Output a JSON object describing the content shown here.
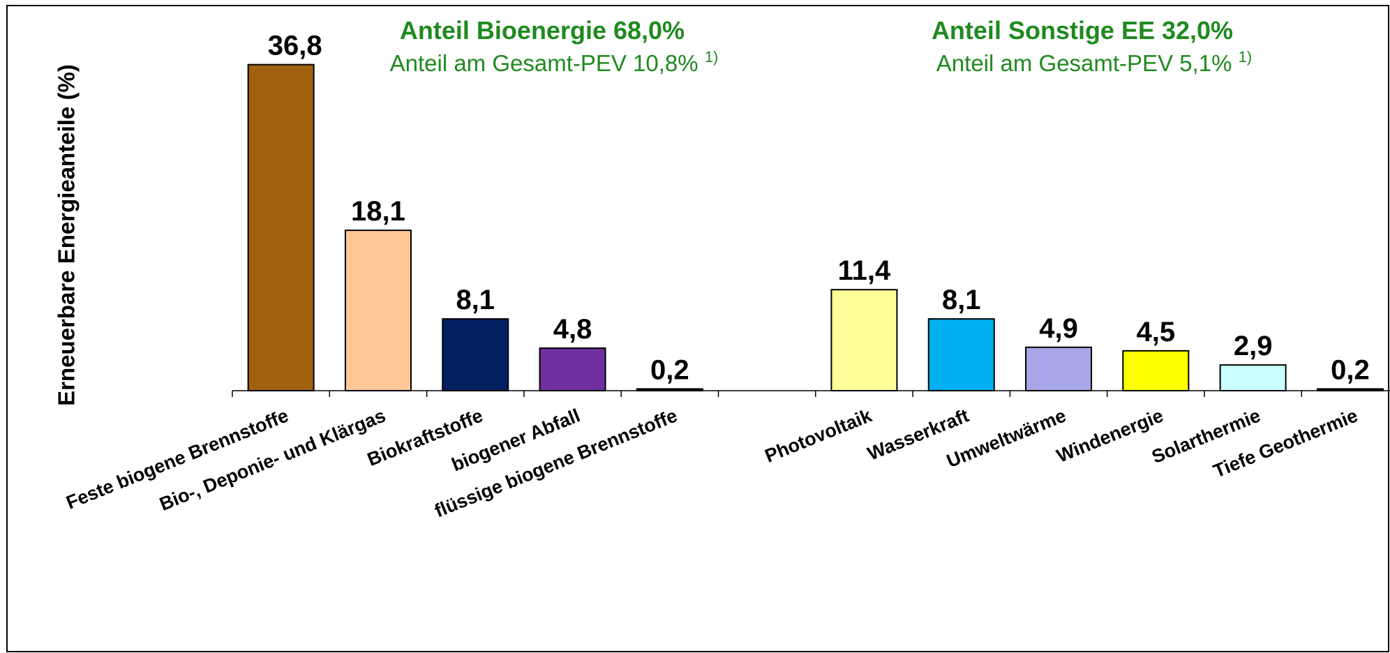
{
  "chart_data": {
    "type": "bar",
    "y_label": "Erneuerbare Energieanteile (%)",
    "annotations": [
      {
        "text": "Anteil Bioenergie 68,0%",
        "color": "#1f8a1f",
        "bold": true
      },
      {
        "text": "Anteil am Gesamt-PEV 10,8%",
        "note": "1)",
        "color": "#1f8a1f",
        "bold": false
      },
      {
        "text": "Anteil Sonstige EE 32,0%",
        "color": "#1f8a1f",
        "bold": true
      },
      {
        "text": "Anteil am Gesamt-PEV 5,1%",
        "note": "1)",
        "color": "#1f8a1f",
        "bold": false
      }
    ],
    "categories": [
      "Feste biogene Brennstoffe",
      "Bio-, Deponie- und Klärgas",
      "Biokraftstoffe",
      "biogener Abfall",
      "flüssige biogene Brennstoffe",
      null,
      "Photovoltaik",
      "Wasserkraft",
      "Umweltwärme",
      "Windenergie",
      "Solarthermie",
      "Tiefe Geothermie"
    ],
    "values": [
      36.8,
      18.1,
      8.1,
      4.8,
      0.2,
      null,
      11.4,
      8.1,
      4.9,
      4.5,
      2.9,
      0.2
    ],
    "value_labels": [
      "36,8",
      "18,1",
      "8,1",
      "4,8",
      "0,2",
      null,
      "11,4",
      "8,1",
      "4,9",
      "4,5",
      "2,9",
      "0,2"
    ],
    "colors": [
      "#a0620f",
      "#ffc896",
      "#002060",
      "#7030a0",
      "#000000",
      null,
      "#ffff99",
      "#00b0f0",
      "#a6a6e8",
      "#ffff00",
      "#ccffff",
      "#000000"
    ],
    "ylim": [
      0,
      40
    ]
  }
}
